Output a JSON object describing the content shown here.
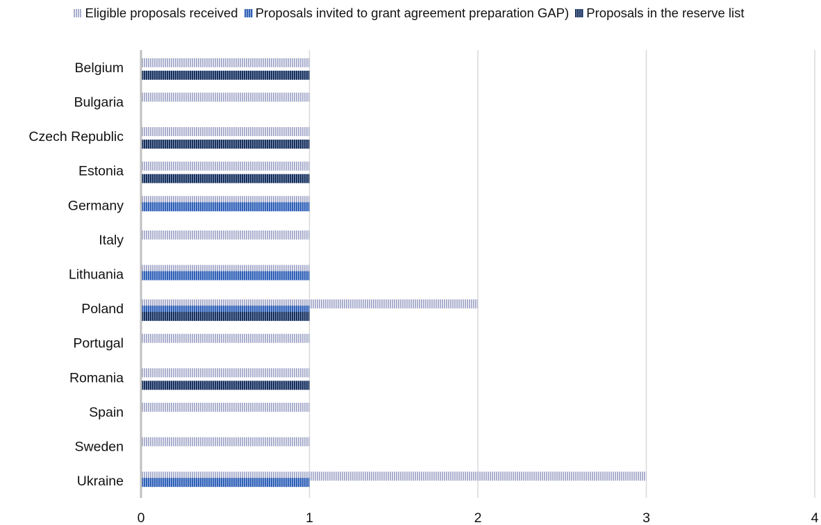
{
  "chart_data": {
    "type": "bar",
    "orientation": "horizontal",
    "categories": [
      "Belgium",
      "Bulgaria",
      "Czech Republic",
      "Estonia",
      "Germany",
      "Italy",
      "Lithuania",
      "Poland",
      "Portugal",
      "Romania",
      "Spain",
      "Sweden",
      "Ukraine"
    ],
    "series": [
      {
        "name": "Eligible proposals received",
        "color": "#a9aecd",
        "stripe": "#ffffff",
        "values": [
          1,
          1,
          1,
          1,
          1,
          1,
          1,
          2,
          1,
          1,
          1,
          1,
          3
        ]
      },
      {
        "name": "Proposals invited to grant agreement preparation GAP)",
        "color": "#2f5fb5",
        "stripe": "#a7c0e8",
        "values": [
          0,
          0,
          0,
          0,
          1,
          0,
          1,
          1,
          0,
          0,
          0,
          0,
          1
        ]
      },
      {
        "name": "Proposals in the reserve list",
        "color": "#162e58",
        "stripe": "#8da0c2",
        "values": [
          1,
          0,
          1,
          1,
          0,
          0,
          0,
          1,
          0,
          1,
          0,
          0,
          0
        ]
      }
    ],
    "x_ticks": [
      "0",
      "1",
      "2",
      "3",
      "4"
    ],
    "xlim": [
      0,
      4
    ],
    "title": "",
    "xlabel": "",
    "ylabel": "",
    "grid": "vertical",
    "legend": "top"
  }
}
